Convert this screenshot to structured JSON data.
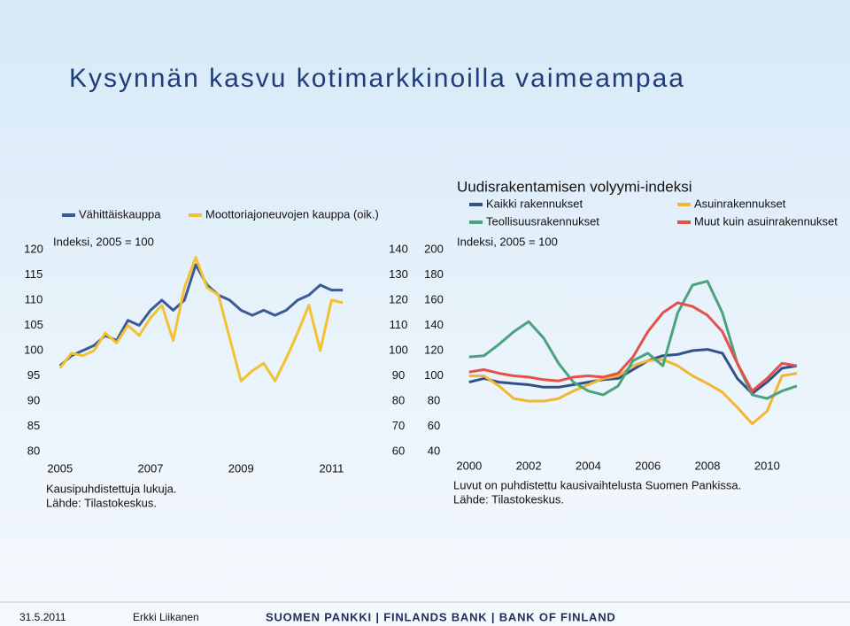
{
  "title": "Kysynnän kasvu kotimarkkinoilla vaimeampaa",
  "footer": {
    "date": "31.5.2011",
    "author": "Erkki Liikanen",
    "bank": "SUOMEN PANKKI | FINLANDS BANK | BANK OF FINLAND"
  },
  "chart_data": [
    {
      "type": "line",
      "annotation": "Indeksi, 2005 = 100",
      "notes": [
        "Kausipuhdistettuja lukuja.",
        "Lähde: Tilastokeskus."
      ],
      "x": [
        2005,
        2005.25,
        2005.5,
        2005.75,
        2006,
        2006.25,
        2006.5,
        2006.75,
        2007,
        2007.25,
        2007.5,
        2007.75,
        2008,
        2008.25,
        2008.5,
        2008.75,
        2009,
        2009.25,
        2009.5,
        2009.75,
        2010,
        2010.25,
        2010.5,
        2010.75,
        2011,
        2011.25
      ],
      "xlim": [
        2004.75,
        2011.5
      ],
      "xticks": [
        2005,
        2007,
        2009,
        2011
      ],
      "ylim": [
        80,
        120
      ],
      "yticks": [
        80,
        85,
        90,
        95,
        100,
        105,
        110,
        115,
        120
      ],
      "y2lim": [
        60,
        140
      ],
      "y2ticks": [
        60,
        70,
        80,
        90,
        100,
        110,
        120,
        130,
        140
      ],
      "series": [
        {
          "name": "Vähittäiskauppa",
          "color": "#3a5a98",
          "values": [
            97,
            99,
            100,
            101,
            103,
            102,
            106,
            105,
            108,
            110,
            108,
            110,
            117,
            113,
            111,
            110,
            108,
            107,
            108,
            107,
            108,
            110,
            111,
            113,
            112,
            112
          ]
        },
        {
          "name": "Moottoriajoneuvojen kauppa (oik.)",
          "color": "#f2c233",
          "axis": "y2",
          "values": [
            93,
            99,
            98,
            100,
            107,
            103,
            110,
            106,
            113,
            118,
            104,
            125,
            137,
            125,
            122,
            105,
            88,
            92,
            95,
            88,
            97,
            107,
            118,
            100,
            120,
            119
          ]
        }
      ]
    },
    {
      "type": "line",
      "title": "Uudisrakentamisen volyymi-indeksi",
      "annotation": "Indeksi, 2005 = 100",
      "notes": [
        "Luvut on puhdistettu kausivaihtelusta Suomen Pankissa.",
        "Lähde: Tilastokeskus."
      ],
      "x": [
        2000,
        2000.5,
        2001,
        2001.5,
        2002,
        2002.5,
        2003,
        2003.5,
        2004,
        2004.5,
        2005,
        2005.5,
        2006,
        2006.5,
        2007,
        2007.5,
        2008,
        2008.5,
        2009,
        2009.5,
        2010,
        2010.5,
        2011
      ],
      "xlim": [
        1999.5,
        2011
      ],
      "xticks": [
        2000,
        2002,
        2004,
        2006,
        2008,
        2010
      ],
      "ylim": [
        40,
        200
      ],
      "yticks": [
        40,
        60,
        80,
        100,
        120,
        140,
        160,
        180,
        200
      ],
      "series": [
        {
          "name": "Kaikki rakennukset",
          "color": "#34508a",
          "values": [
            95,
            98,
            95,
            94,
            93,
            91,
            91,
            93,
            95,
            97,
            98,
            105,
            112,
            116,
            117,
            120,
            121,
            118,
            98,
            86,
            95,
            106,
            108
          ]
        },
        {
          "name": "Asuinrakennukset",
          "color": "#f2b630",
          "values": [
            100,
            100,
            92,
            82,
            80,
            80,
            82,
            88,
            93,
            98,
            100,
            108,
            112,
            113,
            108,
            100,
            94,
            87,
            75,
            62,
            72,
            100,
            102
          ]
        },
        {
          "name": "Teollisuusrakennukset",
          "color": "#4aa37c",
          "values": [
            115,
            116,
            125,
            135,
            143,
            130,
            110,
            95,
            88,
            85,
            92,
            112,
            118,
            108,
            150,
            172,
            175,
            150,
            110,
            85,
            82,
            88,
            92
          ]
        },
        {
          "name": "Muut kuin asuinrakennukset",
          "color": "#e4504a",
          "values": [
            103,
            105,
            102,
            100,
            99,
            97,
            96,
            99,
            100,
            99,
            102,
            115,
            135,
            150,
            158,
            155,
            148,
            135,
            110,
            88,
            98,
            110,
            108
          ]
        }
      ]
    }
  ]
}
